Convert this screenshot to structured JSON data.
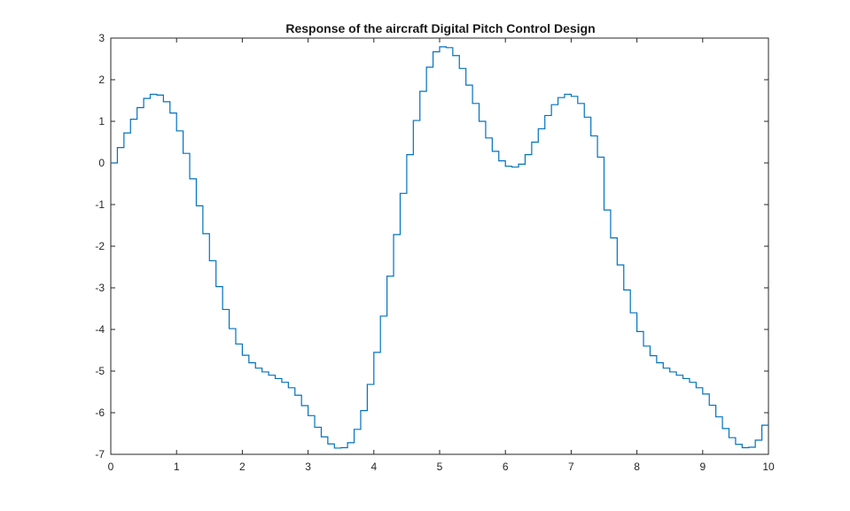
{
  "chart_data": {
    "type": "line",
    "title": "Response of the aircraft Digital Pitch Control Design",
    "xlabel": "",
    "ylabel": "",
    "xlim": [
      0,
      10
    ],
    "ylim": [
      -7,
      3
    ],
    "xticks": [
      0,
      1,
      2,
      3,
      4,
      5,
      6,
      7,
      8,
      9,
      10
    ],
    "yticks": [
      3,
      2,
      1,
      0,
      -1,
      -2,
      -3,
      -4,
      -5,
      -6,
      -7
    ],
    "xtick_labels": [
      "0",
      "1",
      "2",
      "3",
      "4",
      "5",
      "6",
      "7",
      "8",
      "9",
      "10"
    ],
    "ytick_labels": [
      "3",
      "2",
      "1",
      "0",
      "-1",
      "-2",
      "-3",
      "-4",
      "-5",
      "-6",
      "-7"
    ],
    "grid": true,
    "legend": "none",
    "step_plot": true,
    "series": [
      {
        "color": "#0072bd",
        "x": [
          0,
          0.1,
          0.2,
          0.3,
          0.4,
          0.5,
          0.6,
          0.7,
          0.8,
          0.9,
          1.0,
          1.1,
          1.2,
          1.3,
          1.4,
          1.5,
          1.6,
          1.7,
          1.8,
          1.9,
          2.0,
          2.1,
          2.2,
          2.3,
          2.4,
          2.5,
          2.6,
          2.7,
          2.8,
          2.9,
          3.0,
          3.1,
          3.2,
          3.3,
          3.4,
          3.5,
          3.6,
          3.7,
          3.8,
          3.9,
          4.0,
          4.1,
          4.2,
          4.3,
          4.4,
          4.5,
          4.6,
          4.7,
          4.8,
          4.9,
          5.0,
          5.1,
          5.2,
          5.3,
          5.4,
          5.5,
          5.6,
          5.7,
          5.8,
          5.9,
          6.0,
          6.1,
          6.2,
          6.3,
          6.4,
          6.5,
          6.6,
          6.7,
          6.8,
          6.9,
          7.0,
          7.1,
          7.2,
          7.3,
          7.4,
          7.5,
          7.6,
          7.7,
          7.8,
          7.9,
          8.0,
          8.1,
          8.2,
          8.3,
          8.4,
          8.5,
          8.6,
          8.7,
          8.8,
          8.9,
          9.0,
          9.1,
          9.2,
          9.3,
          9.4,
          9.5,
          9.6,
          9.7,
          9.8,
          9.9
        ],
        "y": [
          0,
          0.37,
          0.72,
          1.05,
          1.33,
          1.55,
          1.65,
          1.63,
          1.47,
          1.2,
          0.77,
          0.23,
          -0.38,
          -1.03,
          -1.7,
          -2.35,
          -2.97,
          -3.52,
          -3.98,
          -4.35,
          -4.62,
          -4.8,
          -4.93,
          -5.02,
          -5.1,
          -5.18,
          -5.27,
          -5.4,
          -5.58,
          -5.83,
          -6.07,
          -6.35,
          -6.58,
          -6.75,
          -6.85,
          -6.84,
          -6.72,
          -6.4,
          -5.95,
          -5.32,
          -4.55,
          -3.68,
          -2.72,
          -1.72,
          -0.73,
          0.2,
          1.02,
          1.72,
          2.3,
          2.67,
          2.79,
          2.77,
          2.58,
          2.27,
          1.87,
          1.43,
          1.0,
          0.6,
          0.28,
          0.05,
          -0.08,
          -0.1,
          -0.03,
          0.2,
          0.5,
          0.82,
          1.14,
          1.4,
          1.57,
          1.65,
          1.6,
          1.43,
          1.1,
          0.65,
          0.14,
          -1.13,
          -1.8,
          -2.45,
          -3.05,
          -3.6,
          -4.05,
          -4.4,
          -4.63,
          -4.8,
          -4.93,
          -5.02,
          -5.1,
          -5.18,
          -5.27,
          -5.4,
          -5.55,
          -5.82,
          -6.1,
          -6.38,
          -6.6,
          -6.76,
          -6.84,
          -6.83,
          -6.66,
          -6.3
        ]
      }
    ]
  }
}
